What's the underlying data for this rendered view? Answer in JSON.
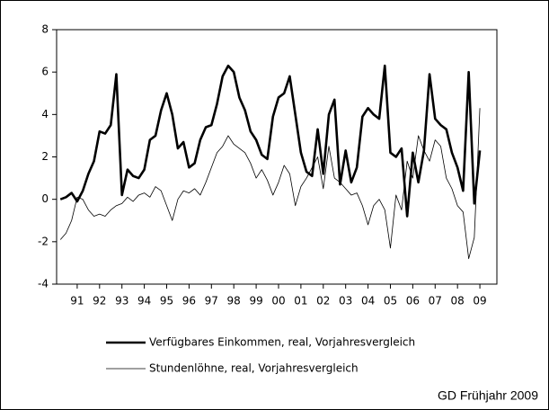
{
  "chart_data": {
    "type": "line",
    "x": [
      1990.25,
      1990.5,
      1990.75,
      1991,
      1991.25,
      1991.5,
      1991.75,
      1992,
      1992.25,
      1992.5,
      1992.75,
      1993,
      1993.25,
      1993.5,
      1993.75,
      1994,
      1994.25,
      1994.5,
      1994.75,
      1995,
      1995.25,
      1995.5,
      1995.75,
      1996,
      1996.25,
      1996.5,
      1996.75,
      1997,
      1997.25,
      1997.5,
      1997.75,
      1998,
      1998.25,
      1998.5,
      1998.75,
      1999,
      1999.25,
      1999.5,
      1999.75,
      2000,
      2000.25,
      2000.5,
      2000.75,
      2001,
      2001.25,
      2001.5,
      2001.75,
      2002,
      2002.25,
      2002.5,
      2002.75,
      2003,
      2003.25,
      2003.5,
      2003.75,
      2004,
      2004.25,
      2004.5,
      2004.75,
      2005,
      2005.25,
      2005.5,
      2005.75,
      2006,
      2006.25,
      2006.5,
      2006.75,
      2007,
      2007.25,
      2007.5,
      2007.75,
      2008,
      2008.25,
      2008.5,
      2008.75,
      2009
    ],
    "series": [
      {
        "name": "Verfügbares Einkommen, real, Vorjahresvergleich",
        "color": "#000000",
        "width": 2.6,
        "values": [
          0,
          0.1,
          0.3,
          -0.1,
          0.4,
          1.2,
          1.8,
          3.2,
          3.1,
          3.5,
          5.9,
          0.2,
          1.4,
          1.1,
          1.0,
          1.4,
          2.8,
          3.0,
          4.2,
          5.0,
          4.0,
          2.4,
          2.7,
          1.5,
          1.7,
          2.8,
          3.4,
          3.5,
          4.5,
          5.8,
          6.3,
          6.0,
          4.8,
          4.2,
          3.2,
          2.8,
          2.1,
          1.9,
          3.9,
          4.8,
          5.0,
          5.8,
          4.0,
          2.2,
          1.3,
          1.1,
          3.3,
          1.2,
          4.0,
          4.7,
          0.7,
          2.3,
          0.8,
          1.5,
          3.9,
          4.3,
          4.0,
          3.8,
          6.3,
          2.2,
          2.0,
          2.4,
          -0.8,
          2.2,
          0.8,
          2.3,
          5.9,
          3.8,
          3.5,
          3.3,
          2.2,
          1.5,
          0.4,
          6.0,
          -0.2,
          2.3
        ]
      },
      {
        "name": "Stundenlöhne, real, Vorjahresvergleich",
        "color": "#000000",
        "width": 0.8,
        "values": [
          -1.9,
          -1.6,
          -1.0,
          0.1,
          0.0,
          -0.5,
          -0.8,
          -0.7,
          -0.8,
          -0.5,
          -0.3,
          -0.2,
          0.1,
          -0.1,
          0.2,
          0.3,
          0.1,
          0.6,
          0.4,
          -0.3,
          -1.0,
          0.0,
          0.4,
          0.3,
          0.5,
          0.2,
          0.8,
          1.5,
          2.2,
          2.5,
          3.0,
          2.6,
          2.4,
          2.2,
          1.7,
          1.0,
          1.4,
          0.9,
          0.2,
          0.8,
          1.6,
          1.2,
          -0.3,
          0.6,
          1.0,
          1.5,
          2.0,
          0.5,
          2.5,
          1.0,
          0.8,
          0.5,
          0.2,
          0.3,
          -0.3,
          -1.2,
          -0.3,
          0.0,
          -0.5,
          -2.3,
          0.2,
          -0.5,
          1.8,
          1.0,
          3.0,
          2.3,
          1.8,
          2.8,
          2.5,
          1.0,
          0.5,
          -0.3,
          -0.6,
          -2.8,
          -1.8,
          4.3
        ]
      }
    ],
    "xlim": [
      1990.08,
      2009.76
    ],
    "xticks": [
      {
        "value": 1991,
        "label": "91"
      },
      {
        "value": 1992,
        "label": "92"
      },
      {
        "value": 1993,
        "label": "93"
      },
      {
        "value": 1994,
        "label": "94"
      },
      {
        "value": 1995,
        "label": "95"
      },
      {
        "value": 1996,
        "label": "96"
      },
      {
        "value": 1997,
        "label": "97"
      },
      {
        "value": 1998,
        "label": "98"
      },
      {
        "value": 1999,
        "label": "99"
      },
      {
        "value": 2000,
        "label": "00"
      },
      {
        "value": 2001,
        "label": "01"
      },
      {
        "value": 2002,
        "label": "02"
      },
      {
        "value": 2003,
        "label": "03"
      },
      {
        "value": 2004,
        "label": "04"
      },
      {
        "value": 2005,
        "label": "05"
      },
      {
        "value": 2006,
        "label": "06"
      },
      {
        "value": 2007,
        "label": "07"
      },
      {
        "value": 2008,
        "label": "08"
      },
      {
        "value": 2009,
        "label": "09"
      }
    ],
    "ylim": [
      -4,
      8
    ],
    "yticks": [
      -4,
      -2,
      0,
      2,
      4,
      6,
      8
    ],
    "source": "GD Frühjahr 2009"
  }
}
